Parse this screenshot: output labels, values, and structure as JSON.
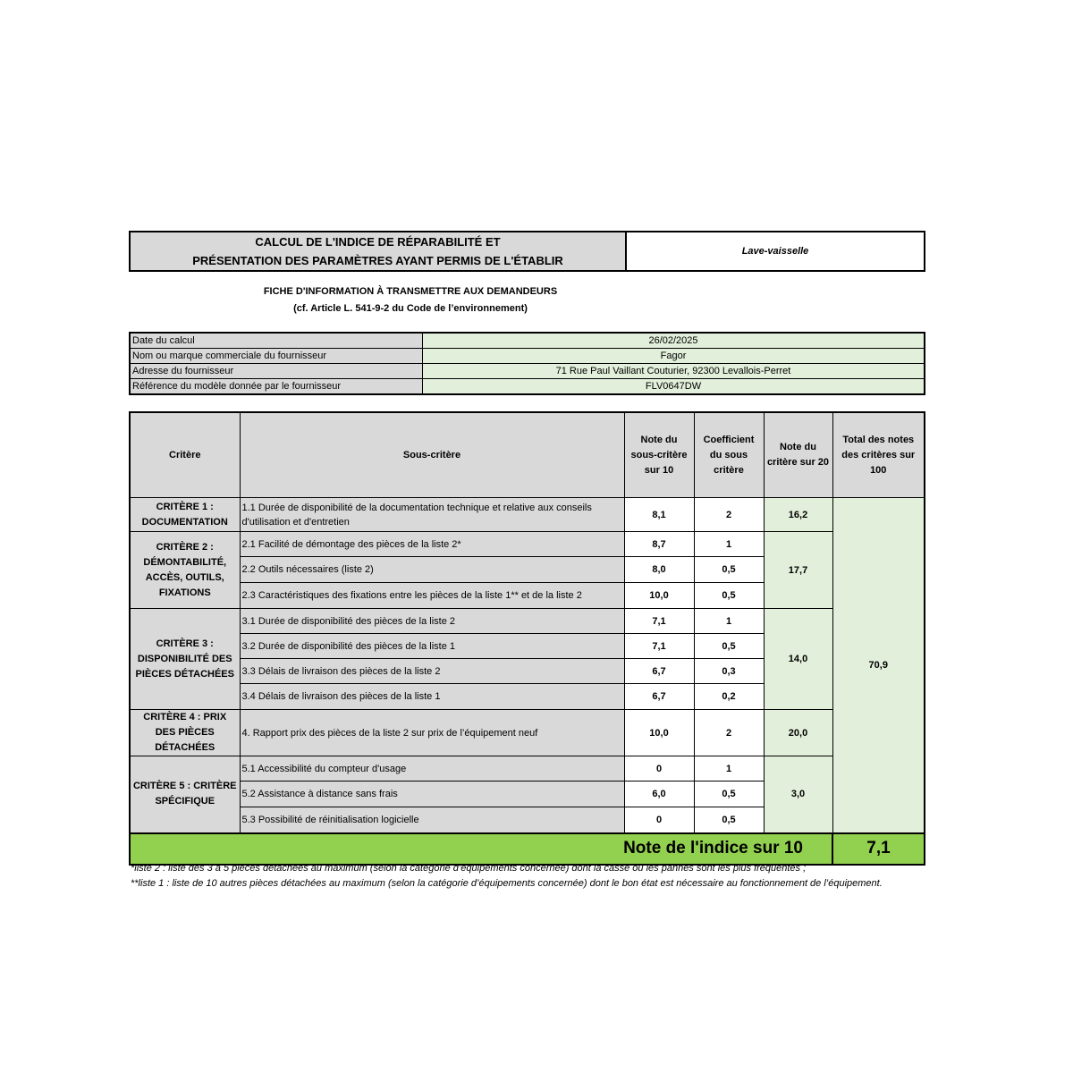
{
  "header": {
    "title_line1": "CALCUL DE L'INDICE DE RÉPARABILITÉ ET",
    "title_line2": "PRÉSENTATION DES PARAMÈTRES AYANT PERMIS DE L'ÉTABLIR",
    "product": "Lave-vaisselle"
  },
  "subtitle": {
    "line1": "FICHE D'INFORMATION À TRANSMETTRE AUX DEMANDEURS",
    "line2": "(cf. Article L. 541-9-2 du Code de l’environnement)"
  },
  "info": [
    {
      "label": "Date du calcul",
      "value": "26/02/2025"
    },
    {
      "label": "Nom ou marque commerciale du fournisseur",
      "value": "Fagor"
    },
    {
      "label": "Adresse du fournisseur",
      "value": "71 Rue Paul Vaillant Couturier, 92300 Levallois-Perret"
    },
    {
      "label": "Référence du modèle donnée par le fournisseur",
      "value": "FLV0647DW"
    }
  ],
  "table": {
    "headers": [
      "Critère",
      "Sous-critère",
      "Note du sous-critère sur 10",
      "Coefficient du sous critère",
      "Note du critère sur 20",
      "Total des notes des critères sur 100"
    ],
    "total_100": "70,9",
    "criteria": [
      {
        "label": "CRITÈRE 1 : DOCUMENTATION",
        "score20": "16,2",
        "subs": [
          {
            "label": "1.1 Durée de disponibilité de la documentation technique et relative aux conseils d'utilisation et d'entretien",
            "note": "8,1",
            "coef": "2"
          }
        ]
      },
      {
        "label": "CRITÈRE 2 : DÉMONTABILITÉ, ACCÈS, OUTILS, FIXATIONS",
        "score20": "17,7",
        "subs": [
          {
            "label": "2.1 Facilité de démontage des pièces de la liste 2*",
            "note": "8,7",
            "coef": "1"
          },
          {
            "label": "2.2 Outils nécessaires (liste 2)",
            "note": "8,0",
            "coef": "0,5"
          },
          {
            "label": "2.3 Caractéristiques des fixations entre les pièces de la liste 1** et de la liste 2",
            "note": "10,0",
            "coef": "0,5"
          }
        ]
      },
      {
        "label": "CRITÈRE 3 : DISPONIBILITÉ DES PIÈCES DÉTACHÉES",
        "score20": "14,0",
        "subs": [
          {
            "label": "3.1 Durée de disponibilité des pièces de la liste 2",
            "note": "7,1",
            "coef": "1"
          },
          {
            "label": "3.2 Durée de disponibilité des pièces de la liste 1",
            "note": "7,1",
            "coef": "0,5"
          },
          {
            "label": "3.3 Délais de livraison des pièces de la liste 2",
            "note": "6,7",
            "coef": "0,3"
          },
          {
            "label": "3.4 Délais de livraison des pièces de la liste 1",
            "note": "6,7",
            "coef": "0,2"
          }
        ]
      },
      {
        "label": "CRITÈRE 4 : PRIX DES PIÈCES DÉTACHÉES",
        "score20": "20,0",
        "subs": [
          {
            "label": "4. Rapport prix des pièces de la liste 2 sur prix de l’équipement neuf",
            "note": "10,0",
            "coef": "2"
          }
        ]
      },
      {
        "label": "CRITÈRE 5 : CRITÈRE SPÉCIFIQUE",
        "score20": "3,0",
        "subs": [
          {
            "label": "5.1 Accessibilité du compteur d'usage",
            "note": "0",
            "coef": "1"
          },
          {
            "label": "5.2 Assistance à distance sans frais",
            "note": "6,0",
            "coef": "0,5"
          },
          {
            "label": "5.3 Possibilité de réinitialisation logicielle",
            "note": "0",
            "coef": "0,5"
          }
        ]
      }
    ],
    "index_label": "Note de l'indice sur 10",
    "index_value": "7,1"
  },
  "footnotes": [
    "*liste 2 : liste des 3 à 5 pièces détachées au maximum (selon la catégorie d’équipements concernée) dont la casse ou les pannes sont les plus fréquentes ;",
    "**liste 1 : liste de 10 autres pièces détachées au maximum (selon la catégorie d’équipements concernée) dont le bon état est nécessaire au fonctionnement de l’équipement."
  ],
  "colors": {
    "header_gray": "#d9d9d9",
    "light_green": "#e2efda",
    "index_green": "#92d050"
  }
}
